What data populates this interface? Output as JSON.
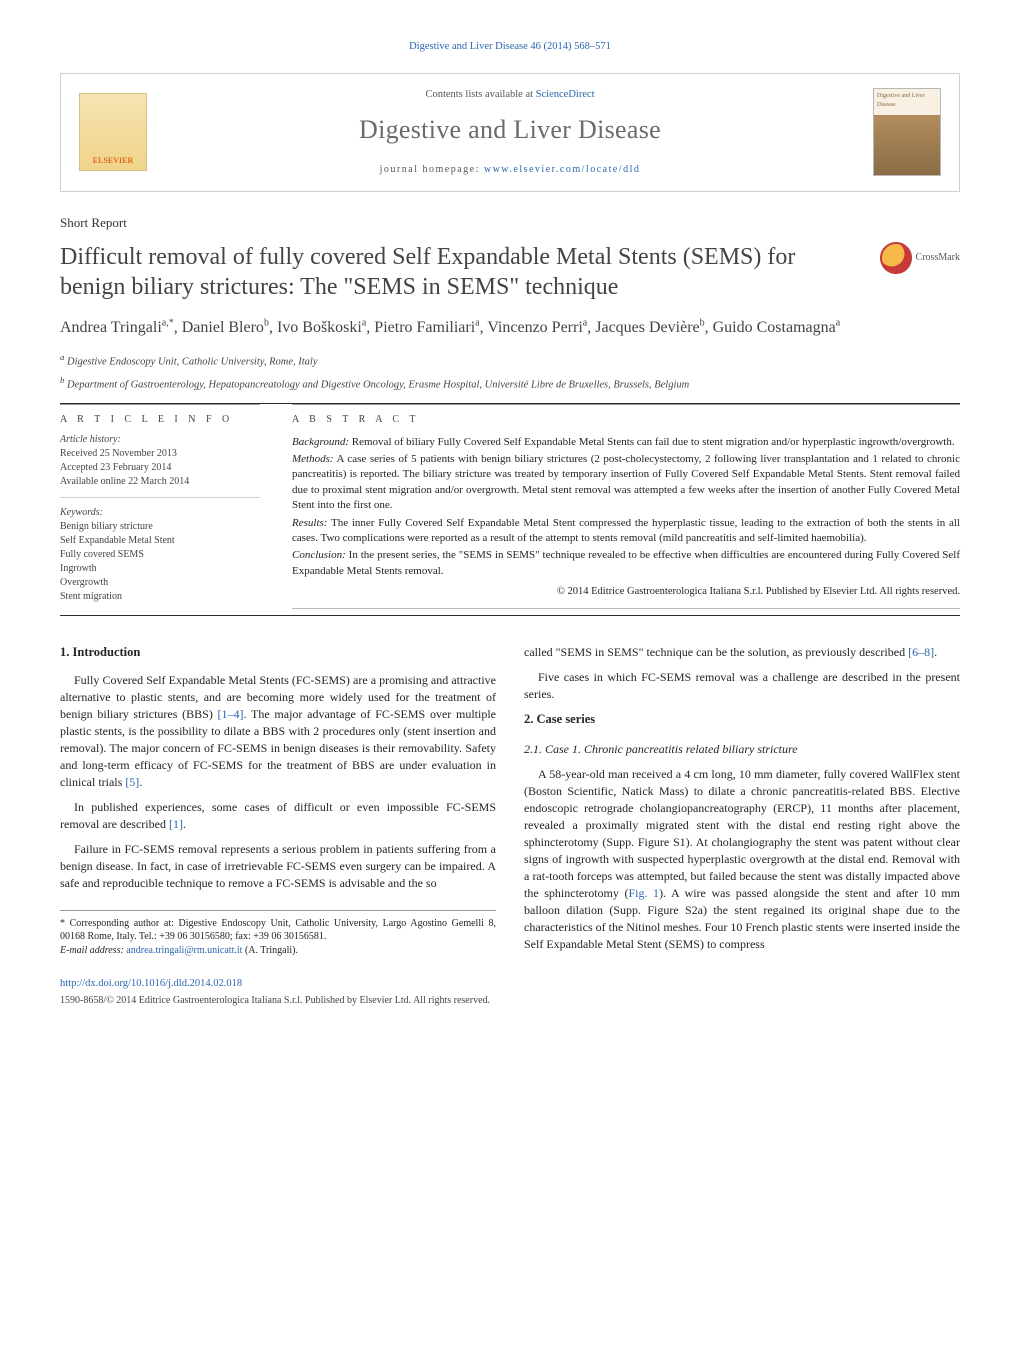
{
  "running_head": "Digestive and Liver Disease 46 (2014) 568–571",
  "header": {
    "contents_prefix": "Contents lists available at ",
    "contents_link": "ScienceDirect",
    "journal_name": "Digestive and Liver Disease",
    "homepage_prefix": "journal homepage: ",
    "homepage_url": "www.elsevier.com/locate/dld",
    "publisher_logo_text": "ELSEVIER",
    "cover_text": "Digestive and Liver Disease"
  },
  "article_type": "Short Report",
  "title": "Difficult removal of fully covered Self Expandable Metal Stents (SEMS) for benign biliary strictures: The \"SEMS in SEMS\" technique",
  "crossmark_label": "CrossMark",
  "authors_html": "Andrea Tringali<sup>a,*</sup>, Daniel Blero<sup>b</sup>, Ivo Boškoski<sup>a</sup>, Pietro Familiari<sup>a</sup>, Vincenzo Perri<sup>a</sup>, Jacques Devière<sup>b</sup>, Guido Costamagna<sup>a</sup>",
  "affiliations": {
    "a": "Digestive Endoscopy Unit, Catholic University, Rome, Italy",
    "b": "Department of Gastroenterology, Hepatopancreatology and Digestive Oncology, Erasme Hospital, Université Libre de Bruxelles, Brussels, Belgium"
  },
  "article_info": {
    "heading": "A R T I C L E   I N F O",
    "history_label": "Article history:",
    "received": "Received 25 November 2013",
    "accepted": "Accepted 23 February 2014",
    "online": "Available online 22 March 2014",
    "keywords_label": "Keywords:",
    "keywords": [
      "Benign biliary stricture",
      "Self Expandable Metal Stent",
      "Fully covered SEMS",
      "Ingrowth",
      "Overgrowth",
      "Stent migration"
    ]
  },
  "abstract": {
    "heading": "A B S T R A C T",
    "background_label": "Background:",
    "background": " Removal of biliary Fully Covered Self Expandable Metal Stents can fail due to stent migration and/or hyperplastic ingrowth/overgrowth.",
    "methods_label": "Methods:",
    "methods": " A case series of 5 patients with benign biliary strictures (2 post-cholecystectomy, 2 following liver transplantation and 1 related to chronic pancreatitis) is reported. The biliary stricture was treated by temporary insertion of Fully Covered Self Expandable Metal Stents. Stent removal failed due to proximal stent migration and/or overgrowth. Metal stent removal was attempted a few weeks after the insertion of another Fully Covered Metal Stent into the first one.",
    "results_label": "Results:",
    "results": " The inner Fully Covered Self Expandable Metal Stent compressed the hyperplastic tissue, leading to the extraction of both the stents in all cases. Two complications were reported as a result of the attempt to stents removal (mild pancreatitis and self-limited haemobilia).",
    "conclusion_label": "Conclusion:",
    "conclusion": " In the present series, the \"SEMS in SEMS\" technique revealed to be effective when difficulties are encountered during Fully Covered Self Expandable Metal Stents removal.",
    "copyright": "© 2014 Editrice Gastroenterologica Italiana S.r.l. Published by Elsevier Ltd. All rights reserved."
  },
  "sections": {
    "intro_heading": "1. Introduction",
    "intro_p1a": "Fully Covered Self Expandable Metal Stents (FC-SEMS) are a promising and attractive alternative to plastic stents, and are becoming more widely used for the treatment of benign biliary strictures (BBS) ",
    "intro_cite1": "[1–4]",
    "intro_p1b": ". The major advantage of FC-SEMS over multiple plastic stents, is the possibility to dilate a BBS with 2 procedures only (stent insertion and removal). The major concern of FC-SEMS in benign diseases is their removability. Safety and long-term efficacy of FC-SEMS for the treatment of BBS are under evaluation in clinical trials ",
    "intro_cite2": "[5]",
    "intro_p1c": ".",
    "intro_p2a": "In published experiences, some cases of difficult or even impossible FC-SEMS removal are described ",
    "intro_cite3": "[1]",
    "intro_p2b": ".",
    "intro_p3a": "Failure in FC-SEMS removal represents a serious problem in patients suffering from a benign disease. In fact, in case of irretrievable FC-SEMS even surgery can be impaired. A safe and reproducible technique to remove a FC-SEMS is advisable and the so",
    "intro_p3b": "called \"SEMS in SEMS\" technique can be the solution, as previously described ",
    "intro_cite4": "[6–8]",
    "intro_p3c": ".",
    "intro_p4": "Five cases in which FC-SEMS removal was a challenge are described in the present series.",
    "case_heading": "2. Case series",
    "case1_heading": "2.1. Case 1. Chronic pancreatitis related biliary stricture",
    "case1_p1a": "A 58-year-old man received a 4 cm long, 10 mm diameter, fully covered WallFlex stent (Boston Scientific, Natick Mass) to dilate a chronic pancreatitis-related BBS. Elective endoscopic retrograde cholangiopancreatography (ERCP), 11 months after placement, revealed a proximally migrated stent with the distal end resting right above the sphincterotomy (Supp. Figure S1). At cholangiography the stent was patent without clear signs of ingrowth with suspected hyperplastic overgrowth at the distal end. Removal with a rat-tooth forceps was attempted, but failed because the stent was distally impacted above the sphincterotomy (",
    "case1_fig": "Fig. 1",
    "case1_p1b": "). A wire was passed alongside the stent and after 10 mm balloon dilation (Supp. Figure S2a) the stent regained its original shape due to the characteristics of the Nitinol meshes. Four 10 French plastic stents were inserted inside the Self Expandable Metal Stent (SEMS) to compress"
  },
  "footnote": {
    "corr_marker": "*",
    "corr_text": " Corresponding author at: Digestive Endoscopy Unit, Catholic University, Largo Agostino Gemelli 8, 00168 Rome, Italy. Tel.: +39 06 30156580; fax: +39 06 30156581.",
    "email_label": "E-mail address: ",
    "email": "andrea.tringali@rm.unicatt.it",
    "email_who": " (A. Tringali)."
  },
  "doi": "http://dx.doi.org/10.1016/j.dld.2014.02.018",
  "issn_line": "1590-8658/© 2014 Editrice Gastroenterologica Italiana S.r.l. Published by Elsevier Ltd. All rights reserved.",
  "colors": {
    "link": "#2a66b0",
    "text": "#242424",
    "rule": "#2c2c2c",
    "light_rule": "#bcbcbc"
  }
}
